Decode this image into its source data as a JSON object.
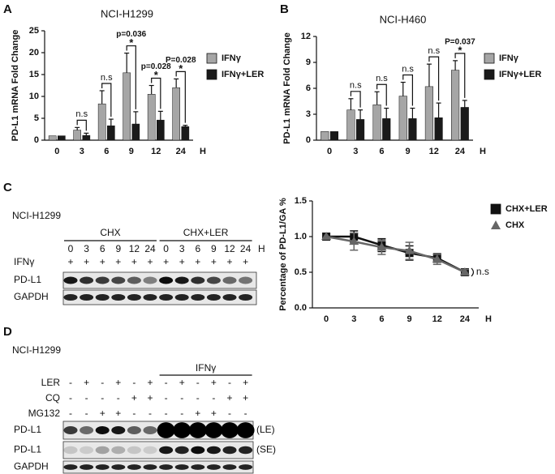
{
  "chart_data": [
    {
      "type": "bar",
      "panel": "A",
      "title": "NCI-H1299",
      "y_label": "PD-L1 mRNA Fold Change",
      "x_label": "H",
      "categories": [
        "0",
        "3",
        "6",
        "9",
        "12",
        "24"
      ],
      "series": [
        {
          "name": "IFNγ",
          "color": "#a6a6a6",
          "values": [
            1,
            2.3,
            8.3,
            15.4,
            10.5,
            12
          ],
          "errors": [
            0,
            0.6,
            3,
            4.5,
            2,
            2
          ]
        },
        {
          "name": "IFNγ+LER",
          "color": "#1a1a1a",
          "values": [
            1,
            1.1,
            3.3,
            3.7,
            4.6,
            3.1
          ],
          "errors": [
            0,
            0.5,
            1.5,
            2.8,
            2,
            0.3
          ]
        }
      ],
      "ylim": [
        0,
        25
      ],
      "yticks": [
        0,
        5,
        10,
        15,
        20,
        25
      ],
      "annotations": [
        {
          "category": "3",
          "text": "n.s"
        },
        {
          "category": "6",
          "text": "n.s"
        },
        {
          "category": "9",
          "text": "p=0.036",
          "mark": "*"
        },
        {
          "category": "12",
          "text": "p=0.028",
          "mark": "*"
        },
        {
          "category": "24",
          "text": "P=0.028",
          "mark": "*"
        }
      ]
    },
    {
      "type": "bar",
      "panel": "B",
      "title": "NCI-H460",
      "y_label": "PD-L1 mRNA Fold Change",
      "x_label": "H",
      "categories": [
        "0",
        "3",
        "6",
        "9",
        "12",
        "24"
      ],
      "series": [
        {
          "name": "IFNγ",
          "color": "#a6a6a6",
          "values": [
            1,
            3.5,
            4.1,
            5.1,
            6.2,
            8.1
          ],
          "errors": [
            0,
            1.3,
            1.5,
            1.6,
            2.6,
            1.1
          ]
        },
        {
          "name": "IFNγ+LER",
          "color": "#1a1a1a",
          "values": [
            1,
            2.4,
            2.5,
            2.5,
            2.6,
            3.8
          ],
          "errors": [
            0,
            1.1,
            1.2,
            1.2,
            1.7,
            0.8
          ]
        }
      ],
      "ylim": [
        0,
        12
      ],
      "yticks": [
        0,
        3,
        6,
        9,
        12
      ],
      "annotations": [
        {
          "category": "3",
          "text": "n.s"
        },
        {
          "category": "6",
          "text": "n.s"
        },
        {
          "category": "9",
          "text": "n.s"
        },
        {
          "category": "12",
          "text": "n.s"
        },
        {
          "category": "24",
          "text": "P=0.037",
          "mark": "*"
        }
      ]
    },
    {
      "type": "line",
      "y_label": "Percentage of PD-L1/GA %",
      "x_label": "H",
      "categories": [
        "0",
        "3",
        "6",
        "9",
        "12",
        "24"
      ],
      "series": [
        {
          "name": "CHX+LER",
          "color": "#111111",
          "marker": "square",
          "values": [
            1,
            1.0,
            0.88,
            0.77,
            0.7,
            0.5
          ],
          "errors": [
            0,
            0.08,
            0.09,
            0.1,
            0.06,
            0.04
          ]
        },
        {
          "name": "CHX",
          "color": "#666666",
          "marker": "triangle",
          "values": [
            1,
            0.93,
            0.85,
            0.8,
            0.68,
            0.5
          ],
          "errors": [
            0,
            0.12,
            0.1,
            0.12,
            0.07,
            0.04
          ]
        }
      ],
      "ylim": [
        0,
        1.5
      ],
      "yticks": [
        {
          "value": 0,
          "label": "0.0"
        },
        {
          "value": 0.5,
          "label": "0.5"
        },
        {
          "value": 1,
          "label": "1.0"
        },
        {
          "value": 1.5,
          "label": "1.5"
        }
      ],
      "annotations": [
        {
          "text": "n.s"
        }
      ]
    }
  ],
  "blot_c": {
    "panel": "C",
    "cell_line": "NCI-H1299",
    "groups": [
      "CHX",
      "CHX+LER"
    ],
    "lanes": [
      "0",
      "3",
      "6",
      "9",
      "12",
      "24",
      "0",
      "3",
      "6",
      "9",
      "12",
      "24"
    ],
    "unit": "H",
    "treatment_rows": [
      {
        "label": "IFNγ",
        "marks": [
          "+",
          "+",
          "+",
          "+",
          "+",
          "+",
          "+",
          "+",
          "+",
          "+",
          "+",
          "+"
        ]
      }
    ],
    "bands": [
      {
        "label": "PD-L1"
      },
      {
        "label": "GAPDH"
      }
    ]
  },
  "blot_d": {
    "panel": "D",
    "cell_line": "NCI-H1299",
    "group": "IFNγ",
    "treatment_rows": [
      {
        "label": "LER",
        "marks": [
          "-",
          "+",
          "-",
          "+",
          "-",
          "+",
          "-",
          "+",
          "-",
          "+",
          "-",
          "+"
        ]
      },
      {
        "label": "CQ",
        "marks": [
          "-",
          "-",
          "-",
          "-",
          "+",
          "+",
          "-",
          "-",
          "-",
          "-",
          "+",
          "+"
        ]
      },
      {
        "label": "MG132",
        "marks": [
          "-",
          "-",
          "+",
          "+",
          "-",
          "-",
          "-",
          "-",
          "+",
          "+",
          "-",
          "-"
        ]
      }
    ],
    "bands": [
      {
        "label": "PD-L1",
        "note": "(LE)"
      },
      {
        "label": "PD-L1",
        "note": "(SE)"
      },
      {
        "label": "GAPDH"
      }
    ]
  }
}
